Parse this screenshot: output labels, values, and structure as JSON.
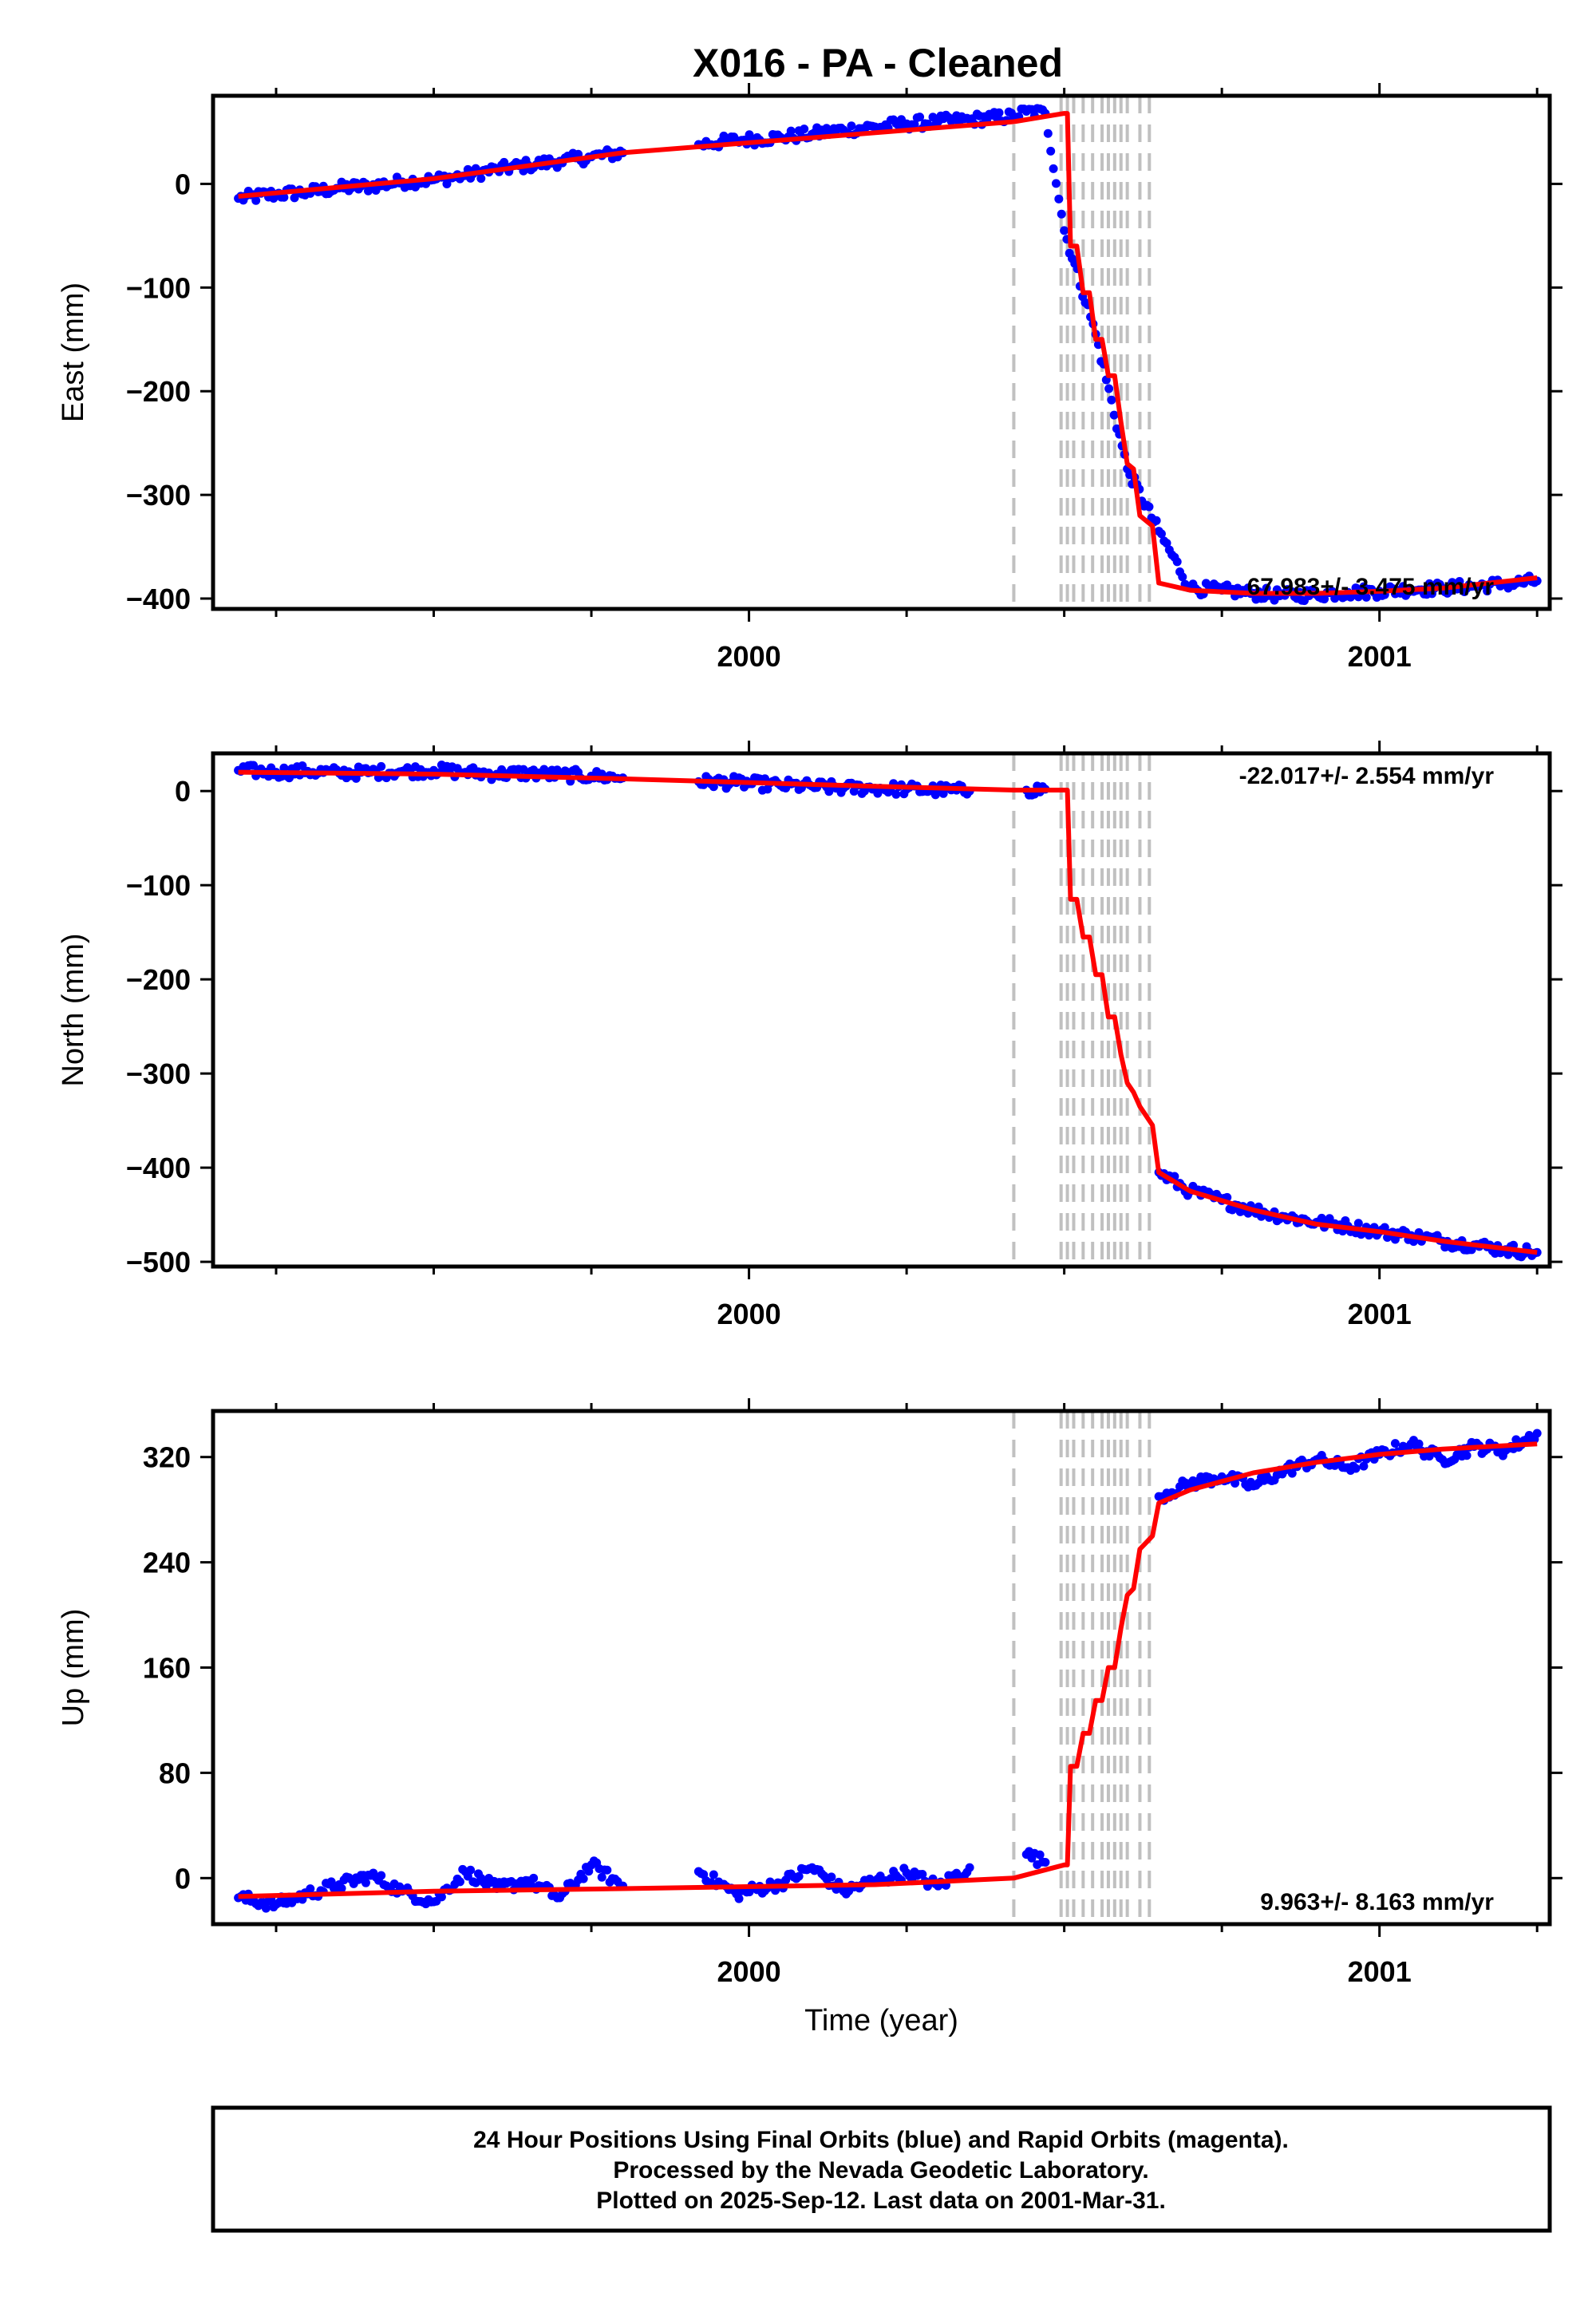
{
  "title": "X016  - PA - Cleaned",
  "colors": {
    "points": "#0000ff",
    "model": "#ff0000",
    "event_lines": "#c0c0c0",
    "frame": "#000000"
  },
  "chart_data": [
    {
      "type": "scatter",
      "panel": "east",
      "ylabel": "East (mm)",
      "xlabel": "",
      "xlim": [
        1999.15,
        2001.27
      ],
      "ylim": [
        -410,
        85
      ],
      "xticks_major": [
        2000,
        2001
      ],
      "xtick_labels": [
        "2000",
        "2001"
      ],
      "yticks": [
        0,
        -100,
        -200,
        -300,
        -400
      ],
      "ytick_labels": [
        "0",
        "−100",
        "−200",
        "−300",
        "−400"
      ],
      "rate_label": "67.983+/- 3.475 mm/yr",
      "model_x": [
        1999.19,
        1999.5,
        1999.8,
        2000.42,
        2000.5,
        2000.505,
        2000.51,
        2000.52,
        2000.53,
        2000.54,
        2000.55,
        2000.56,
        2000.57,
        2000.58,
        2000.59,
        2000.6,
        2000.61,
        2000.62,
        2000.63,
        2000.64,
        2000.65,
        2000.7,
        2000.8,
        2000.9,
        2001.0,
        2001.1,
        2001.25
      ],
      "model_y": [
        -12,
        5,
        30,
        60,
        68,
        68,
        -60,
        -60,
        -105,
        -105,
        -150,
        -150,
        -185,
        -185,
        -230,
        -270,
        -275,
        -320,
        -325,
        -330,
        -385,
        -392,
        -395,
        -395,
        -393,
        -390,
        -380
      ],
      "data_x": [
        1999.19,
        1999.25,
        1999.3,
        1999.35,
        1999.4,
        1999.45,
        1999.5,
        1999.55,
        1999.6,
        1999.65,
        1999.7,
        1999.75,
        1999.8,
        1999.92,
        1999.98,
        2000.05,
        2000.1,
        2000.15,
        2000.2,
        2000.25,
        2000.3,
        2000.35,
        2000.42,
        2000.44,
        2000.47,
        2000.5,
        2000.55,
        2000.6,
        2000.65,
        2000.7,
        2000.75,
        2000.8,
        2000.85,
        2000.9,
        2000.95,
        2001.0,
        2001.05,
        2001.1,
        2001.15,
        2001.2,
        2001.25
      ],
      "data_y": [
        -14,
        -10,
        -8,
        -4,
        -2,
        2,
        4,
        8,
        14,
        18,
        22,
        26,
        30,
        38,
        42,
        45,
        48,
        52,
        55,
        58,
        60,
        62,
        65,
        70,
        68,
        -45,
        -145,
        -275,
        -335,
        -390,
        -392,
        -395,
        -397,
        -396,
        -394,
        -393,
        -391,
        -390,
        -388,
        -386,
        -383
      ]
    },
    {
      "type": "scatter",
      "panel": "north",
      "ylabel": "North (mm)",
      "xlabel": "",
      "xlim": [
        1999.15,
        2001.27
      ],
      "ylim": [
        -505,
        40
      ],
      "xticks_major": [
        2000,
        2001
      ],
      "xtick_labels": [
        "2000",
        "2001"
      ],
      "yticks": [
        0,
        -100,
        -200,
        -300,
        -400,
        -500
      ],
      "ytick_labels": [
        "0",
        "−100",
        "−200",
        "−300",
        "−400",
        "−500"
      ],
      "rate_label": "-22.017+/- 2.554 mm/yr",
      "model_x": [
        1999.19,
        1999.5,
        1999.8,
        2000.2,
        2000.42,
        2000.5,
        2000.505,
        2000.51,
        2000.52,
        2000.53,
        2000.54,
        2000.55,
        2000.56,
        2000.57,
        2000.58,
        2000.59,
        2000.6,
        2000.61,
        2000.62,
        2000.63,
        2000.64,
        2000.65,
        2000.7,
        2000.8,
        2000.9,
        2001.0,
        2001.1,
        2001.25
      ],
      "model_y": [
        20,
        18,
        13,
        5,
        1,
        1,
        1,
        -115,
        -115,
        -155,
        -155,
        -195,
        -195,
        -240,
        -240,
        -280,
        -310,
        -320,
        -335,
        -345,
        -355,
        -405,
        -425,
        -445,
        -460,
        -468,
        -478,
        -490
      ],
      "data_x": [
        1999.19,
        1999.25,
        1999.3,
        1999.35,
        1999.4,
        1999.45,
        1999.5,
        1999.55,
        1999.6,
        1999.65,
        1999.7,
        1999.75,
        1999.8,
        1999.92,
        1999.98,
        2000.05,
        2000.1,
        2000.15,
        2000.2,
        2000.25,
        2000.3,
        2000.35,
        2000.44,
        2000.47,
        2000.65,
        2000.7,
        2000.75,
        2000.8,
        2000.85,
        2000.9,
        2000.95,
        2001.0,
        2001.05,
        2001.1,
        2001.15,
        2001.2,
        2001.25
      ],
      "data_y": [
        22,
        20,
        21,
        19,
        20,
        21,
        22,
        20,
        18,
        19,
        17,
        16,
        14,
        10,
        9,
        6,
        5,
        3,
        3,
        2,
        1,
        0,
        1,
        2,
        -405,
        -425,
        -435,
        -445,
        -452,
        -458,
        -462,
        -468,
        -472,
        -478,
        -482,
        -487,
        -490
      ]
    },
    {
      "type": "scatter",
      "panel": "up",
      "ylabel": "Up (mm)",
      "xlabel": "Time (year)",
      "xlim": [
        1999.15,
        2001.27
      ],
      "ylim": [
        -35,
        355
      ],
      "xticks_major": [
        2000,
        2001
      ],
      "xtick_labels": [
        "2000",
        "2001"
      ],
      "yticks": [
        0,
        80,
        160,
        240,
        320
      ],
      "ytick_labels": [
        "0",
        "80",
        "160",
        "240",
        "320"
      ],
      "rate_label": "9.963+/- 8.163 mm/yr",
      "model_x": [
        1999.19,
        1999.5,
        1999.8,
        2000.2,
        2000.42,
        2000.5,
        2000.505,
        2000.51,
        2000.52,
        2000.53,
        2000.54,
        2000.55,
        2000.56,
        2000.57,
        2000.58,
        2000.59,
        2000.6,
        2000.61,
        2000.62,
        2000.63,
        2000.64,
        2000.65,
        2000.7,
        2000.8,
        2000.9,
        2001.0,
        2001.1,
        2001.25
      ],
      "model_y": [
        -14,
        -10,
        -8,
        -5,
        0,
        10,
        10,
        85,
        85,
        110,
        110,
        135,
        135,
        160,
        160,
        190,
        215,
        220,
        250,
        255,
        260,
        285,
        295,
        308,
        316,
        322,
        326,
        330
      ],
      "data_x": [
        1999.19,
        1999.25,
        1999.3,
        1999.35,
        1999.4,
        1999.45,
        1999.5,
        1999.55,
        1999.6,
        1999.65,
        1999.7,
        1999.75,
        1999.8,
        1999.92,
        1999.98,
        2000.05,
        2000.1,
        2000.15,
        2000.2,
        2000.25,
        2000.3,
        2000.35,
        2000.44,
        2000.47,
        2000.65,
        2000.7,
        2000.75,
        2000.8,
        2000.85,
        2000.9,
        2000.95,
        2001.0,
        2001.05,
        2001.1,
        2001.15,
        2001.2,
        2001.25
      ],
      "data_y": [
        -15,
        -20,
        -12,
        -5,
        2,
        -10,
        -18,
        5,
        -8,
        -2,
        -15,
        10,
        -6,
        5,
        -12,
        -4,
        8,
        -10,
        -2,
        4,
        -6,
        8,
        18,
        12,
        290,
        300,
        305,
        298,
        310,
        318,
        312,
        322,
        330,
        318,
        328,
        325,
        338
      ]
    }
  ],
  "event_lines_x": [
    2000.42,
    2000.495,
    2000.505,
    2000.515,
    2000.53,
    2000.545,
    2000.56,
    2000.57,
    2000.58,
    2000.59,
    2000.6,
    2000.62,
    2000.635
  ],
  "footer": {
    "line1": "24 Hour Positions Using Final Orbits (blue) and Rapid Orbits (magenta).",
    "line2": "Processed by the Nevada Geodetic Laboratory.",
    "line3": "Plotted on 2025-Sep-12. Last data on 2001-Mar-31."
  }
}
